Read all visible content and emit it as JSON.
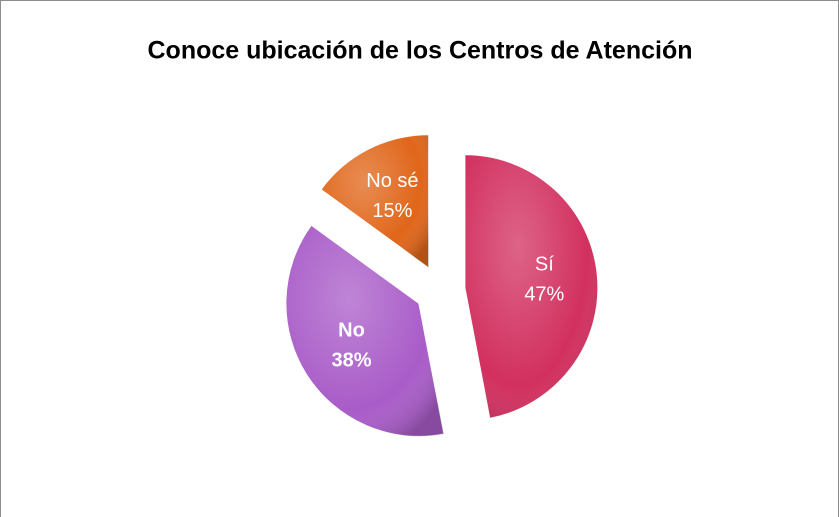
{
  "chart_data": {
    "type": "pie",
    "title": "Conoce ubicación de los Centros de Atención",
    "categories": [
      "Sí",
      "No",
      "No sé"
    ],
    "values": [
      47,
      38,
      15
    ],
    "value_labels": [
      "47%",
      "38%",
      "15%"
    ],
    "colors": [
      "#d2305f",
      "#a95cc8",
      "#e0661a"
    ],
    "label_bold": [
      false,
      true,
      false
    ],
    "legend": false
  }
}
